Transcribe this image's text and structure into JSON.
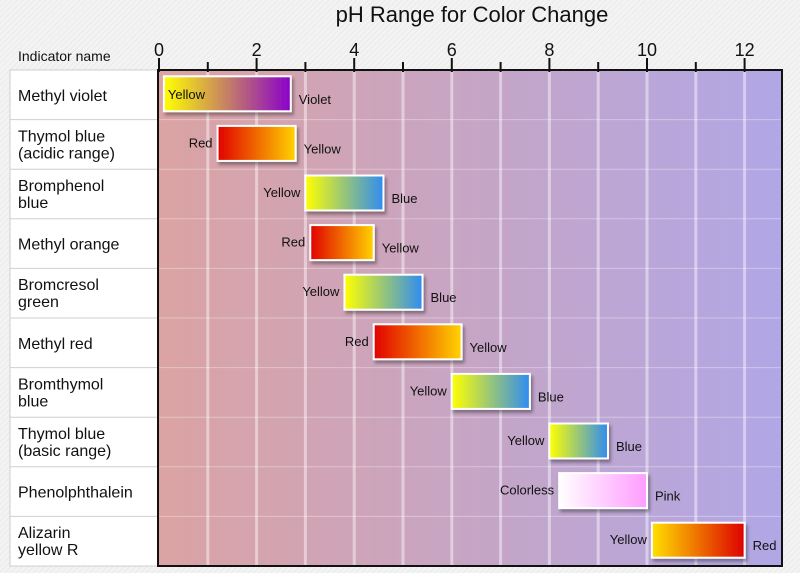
{
  "chart_data": {
    "type": "bar",
    "title": "pH Range for Color Change",
    "row_header": "Indicator name",
    "xlim": [
      0,
      12.6
    ],
    "x_ticks": [
      "0",
      "2",
      "4",
      "6",
      "8",
      "10",
      "12"
    ],
    "grid": true,
    "indicators": [
      {
        "name": [
          "Methyl violet"
        ],
        "start": 0.1,
        "end": 2.7,
        "low_color": "Yellow",
        "high_color": "Violet",
        "gradient": [
          "#ffff00",
          "#8a00cc"
        ],
        "low_label_inside": true
      },
      {
        "name": [
          "Thymol blue",
          "(acidic range)"
        ],
        "start": 1.2,
        "end": 2.8,
        "low_color": "Red",
        "high_color": "Yellow",
        "gradient": [
          "#e10000",
          "#ffd300"
        ],
        "low_label_inside": false
      },
      {
        "name": [
          "Bromphenol",
          "blue"
        ],
        "start": 3.0,
        "end": 4.6,
        "low_color": "Yellow",
        "high_color": "Blue",
        "gradient": [
          "#ffff00",
          "#2f8cf2"
        ],
        "low_label_inside": false
      },
      {
        "name": [
          "Methyl orange"
        ],
        "start": 3.1,
        "end": 4.4,
        "low_color": "Red",
        "high_color": "Yellow",
        "gradient": [
          "#e10000",
          "#ffd300"
        ],
        "low_label_inside": false
      },
      {
        "name": [
          "Bromcresol",
          "green"
        ],
        "start": 3.8,
        "end": 5.4,
        "low_color": "Yellow",
        "high_color": "Blue",
        "gradient": [
          "#ffff00",
          "#2f8cf2"
        ],
        "low_label_inside": false
      },
      {
        "name": [
          "Methyl red"
        ],
        "start": 4.4,
        "end": 6.2,
        "low_color": "Red",
        "high_color": "Yellow",
        "gradient": [
          "#e10000",
          "#ffd300"
        ],
        "low_label_inside": false
      },
      {
        "name": [
          "Bromthymol",
          "blue"
        ],
        "start": 6.0,
        "end": 7.6,
        "low_color": "Yellow",
        "high_color": "Blue",
        "gradient": [
          "#ffff00",
          "#2f8cf2"
        ],
        "low_label_inside": false
      },
      {
        "name": [
          "Thymol blue",
          "(basic range)"
        ],
        "start": 8.0,
        "end": 9.2,
        "low_color": "Yellow",
        "high_color": "Blue",
        "gradient": [
          "#ffff00",
          "#2f8cf2"
        ],
        "low_label_inside": false
      },
      {
        "name": [
          "Phenolphthalein"
        ],
        "start": 8.2,
        "end": 10.0,
        "low_color": "Colorless",
        "high_color": "Pink",
        "gradient": [
          "#ffffff",
          "#ff9cff"
        ],
        "low_label_inside": false
      },
      {
        "name": [
          "Alizarin",
          "yellow R"
        ],
        "start": 10.1,
        "end": 12.0,
        "low_color": "Yellow",
        "high_color": "Red",
        "gradient": [
          "#ffe000",
          "#dd0000"
        ],
        "low_label_inside": false
      }
    ],
    "background_gradient": [
      "#dba3a3",
      "#b1a7e6"
    ]
  }
}
